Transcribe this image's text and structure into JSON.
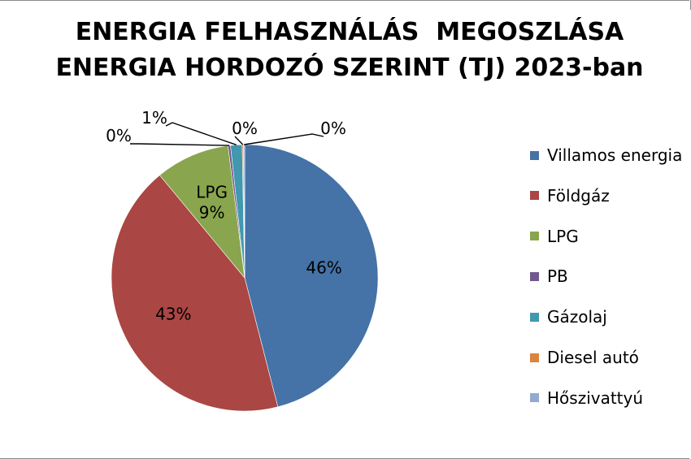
{
  "chart_data": {
    "type": "pie",
    "title_lines": [
      "ENERGIA FELHASZNÁLÁS  MEGOSZLÁSA",
      "ENERGIA HORDOZÓ SZERINT (TJ) 2023-ban"
    ],
    "legend_position": "right",
    "slices": [
      {
        "name": "Villamos energia",
        "value": 46,
        "label": "46%",
        "color": "#4572A7"
      },
      {
        "name": "Földgáz",
        "value": 43,
        "label": "43%",
        "color": "#AA4643"
      },
      {
        "name": "LPG",
        "value": 9,
        "label": "LPG\n9%",
        "color": "#89A54E"
      },
      {
        "name": "PB",
        "value": 0.3,
        "label": "0%",
        "color": "#71588F"
      },
      {
        "name": "Gázolaj",
        "value": 1.4,
        "label": "1%",
        "color": "#4198AF"
      },
      {
        "name": "Diesel autó",
        "value": 0.15,
        "label": "0%",
        "color": "#DB843D"
      },
      {
        "name": "Hőszivattyú",
        "value": 0.15,
        "label": "0%",
        "color": "#93A9CF"
      }
    ]
  }
}
